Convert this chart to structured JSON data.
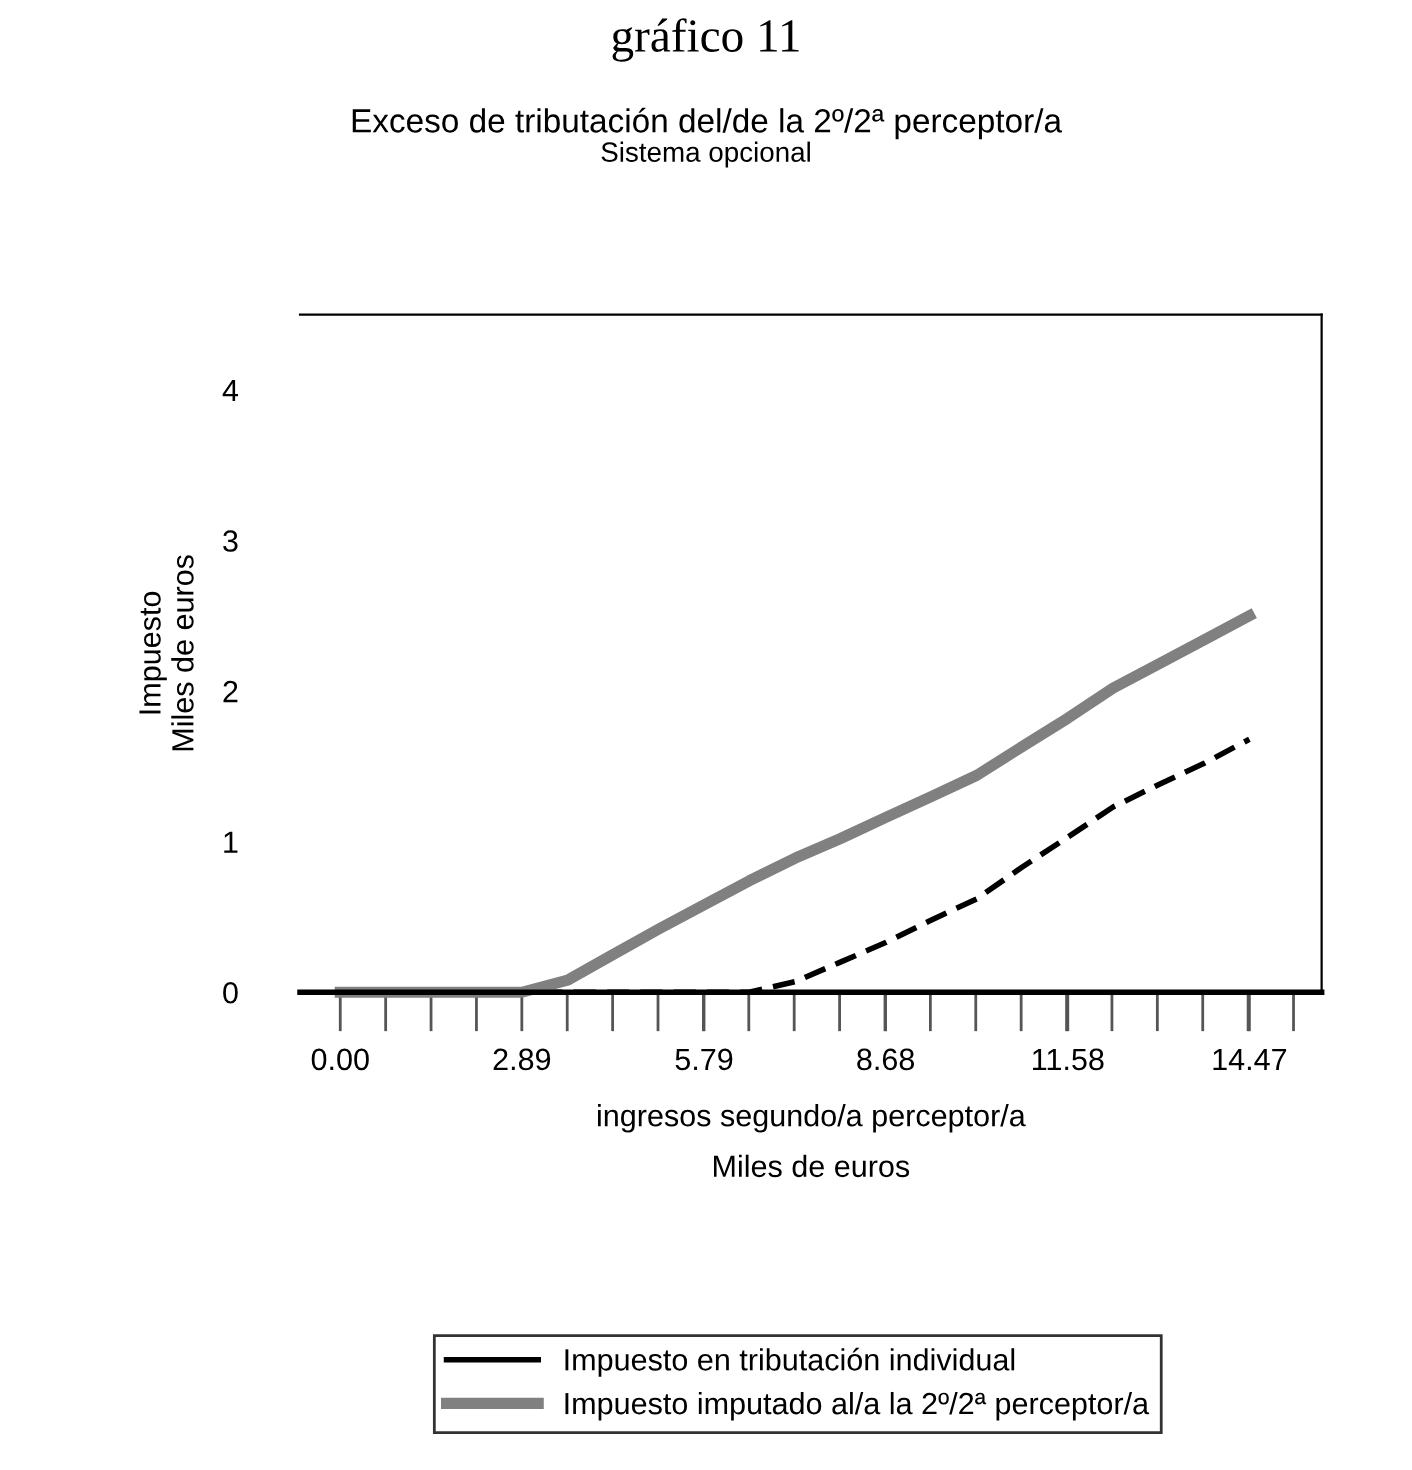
{
  "chart_data": {
    "type": "line",
    "title": "Exceso de tributación del/de la 2º/2ª perceptor/a",
    "subtitle": "Sistema opcional",
    "annotations": [
      "gráfico 11"
    ],
    "xlabel": "ingresos segundo/a perceptor/a\nMiles de euros",
    "ylabel": "Impuesto\nMiles de euros",
    "x": [
      0,
      0.72,
      1.45,
      2.17,
      2.89,
      3.62,
      4.34,
      5.07,
      5.79,
      6.51,
      7.24,
      7.96,
      8.68,
      9.41,
      10.13,
      10.85,
      11.58,
      12.3,
      13.03,
      13.75,
      14.47
    ],
    "series": [
      {
        "name": "Impuesto en tributación individual",
        "color": "#000000",
        "line_style": "dashed",
        "values": [
          0,
          0,
          0,
          0,
          0,
          0,
          0,
          0,
          0,
          0,
          0.07,
          0.2,
          0.33,
          0.48,
          0.62,
          0.83,
          1.03,
          1.23,
          1.38,
          1.52,
          1.68
        ]
      },
      {
        "name": "Impuesto imputado al/a la 2º/2ª perceptor/a",
        "color": "#808080",
        "line_style": "solid",
        "values": [
          0,
          0,
          0,
          0,
          0,
          0.08,
          0.25,
          0.42,
          0.58,
          0.74,
          0.89,
          1.02,
          1.16,
          1.3,
          1.44,
          1.63,
          1.82,
          2.02,
          2.18,
          2.34,
          2.5
        ]
      }
    ],
    "xlim": [
      -0.64,
      15.62
    ],
    "ylim": [
      0,
      4.5
    ],
    "xticks": [
      {
        "value": 0,
        "label": "0.00"
      },
      2.89,
      5.79,
      8.68,
      11.58,
      14.47
    ],
    "yticks": [
      0,
      1,
      2,
      3,
      4
    ],
    "grid": false,
    "legend": "bottom",
    "marker": "none"
  }
}
